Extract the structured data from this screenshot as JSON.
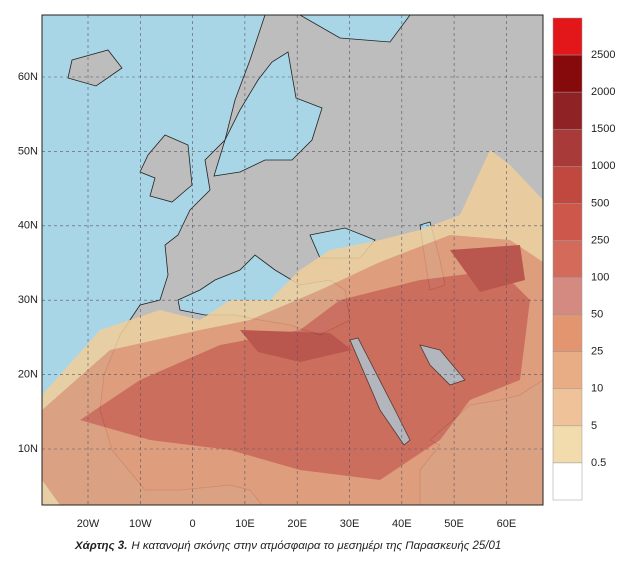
{
  "map": {
    "lat_labels": [
      "60N",
      "50N",
      "40N",
      "30N",
      "20N",
      "10N"
    ],
    "lon_labels": [
      "20W",
      "10W",
      "0",
      "10E",
      "20E",
      "30E",
      "40E",
      "50E",
      "60E"
    ]
  },
  "legend": {
    "labels": [
      "2500",
      "2000",
      "1500",
      "1000",
      "500",
      "250",
      "100",
      "50",
      "25",
      "10",
      "5",
      "0.5"
    ],
    "colors": [
      "#e3161a",
      "#86090b",
      "#8f2224",
      "#a83b39",
      "#c1483f",
      "#cd574a",
      "#d36a5a",
      "#d48a80",
      "#e2956f",
      "#e9ad86",
      "#f0c299",
      "#f2dcae",
      "#ffffff"
    ]
  },
  "caption": {
    "label": "Χάρτης 3.",
    "text": "Η κατανομή σκόνης στην ατμόσφαιρα το μεσημέρι της Παρασκευής 25/01"
  }
}
